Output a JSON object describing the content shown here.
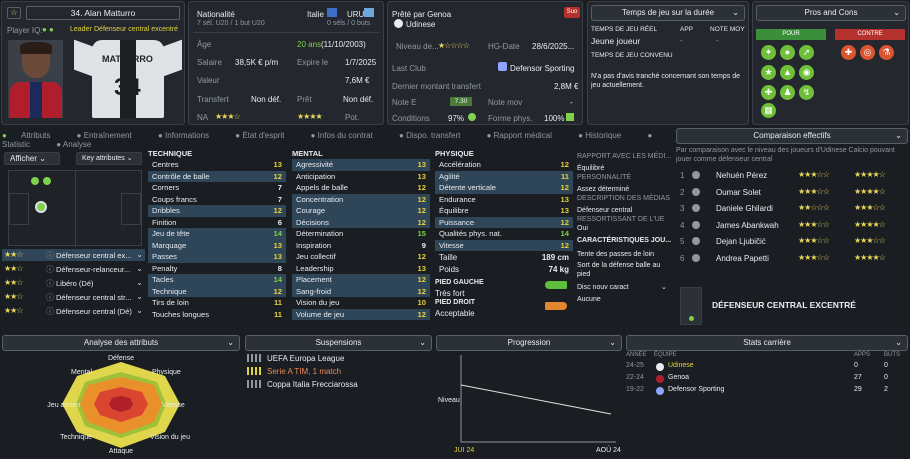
{
  "player": {
    "number_name": "34. Alan Matturro",
    "role_label": "Player IQ:",
    "role_text": "Leader",
    "position": "Défenseur central excentré"
  },
  "info": {
    "nat_label": "Nationalité",
    "nat_val": "Italie",
    "nat2": "URU",
    "caps": "7 sél. U20 / 1 but U20",
    "caps2": "0 séls / 0 buts",
    "age_label": "Âge",
    "age_val": "20 ans",
    "dob": "(11/10/2003)",
    "sal_label": "Salaire",
    "sal_val": "38,5K € p/m",
    "exp_label": "Expire le",
    "exp_val": "1/7/2025",
    "val_label": "Valeur",
    "val_val": "7,6M €",
    "tr_label": "Transfert",
    "tr_val": "Non déf.",
    "pret_label": "Prêt",
    "pret_val": "Non déf.",
    "na_label": "NA",
    "pot_label": "Pot."
  },
  "loan": {
    "title": "Prêté par Genoa",
    "club": "Udinese",
    "badge": "Suo",
    "niveau": "Niveau de...",
    "hg_label": "HG-Date",
    "hg_val": "28/6/2025...",
    "last_label": "Last Club",
    "last_val": "Defensor Sporting",
    "dmt_label": "Dernier montant transfert",
    "dmt_val": "2,8M €",
    "note_label": "Note E",
    "note_val": "7.30",
    "nm_label": "Note mov",
    "nm_val": "-",
    "cond_label": "Conditions",
    "cond_val": "97%",
    "forme_label": "Forme phys.",
    "forme_val": "100%"
  },
  "time": {
    "title": "Temps de jeu sur la durée",
    "col1": "TEMPS DE JEU RÉEL",
    "col2": "APP",
    "col3": "NOTE MOY",
    "val1": "Jeune joueur",
    "sub": "TEMPS DE JEU CONVENU",
    "note": "N'a pas d'avis tranché concernant son temps de jeu actuellement."
  },
  "pros": {
    "title": "Pros and Cons",
    "pour": "POUR",
    "contre": "CONTRE"
  },
  "tabs": [
    "Attributs",
    "Entraînement",
    "Informations",
    "État d'esprit",
    "Infos du contrat",
    "Dispo. transfert",
    "Rapport médical",
    "Historique",
    "Statistic",
    "Analyse"
  ],
  "left": {
    "afficher": "Afficher",
    "key": "Key attributes",
    "roles": [
      "Défenseur central ex...",
      "Défenseur-relanceur...",
      "Libéro (Dé)",
      "Défenseur central str...",
      "Défenseur central (Dé)"
    ]
  },
  "technique": {
    "title": "TECHNIQUE",
    "rows": [
      [
        "Centres",
        "13"
      ],
      [
        "Contrôle de balle",
        "12"
      ],
      [
        "Corners",
        "7"
      ],
      [
        "Coups francs",
        "7"
      ],
      [
        "Dribbles",
        "12"
      ],
      [
        "Finition",
        "6"
      ],
      [
        "Jeu de tête",
        "14"
      ],
      [
        "Marquage",
        "13"
      ],
      [
        "Passes",
        "13"
      ],
      [
        "Penalty",
        "8"
      ],
      [
        "Tacles",
        "14"
      ],
      [
        "Technique",
        "12"
      ],
      [
        "Tirs de loin",
        "11"
      ],
      [
        "Touches longues",
        "11"
      ]
    ]
  },
  "mental": {
    "title": "MENTAL",
    "rows": [
      [
        "Agressivité",
        "13"
      ],
      [
        "Anticipation",
        "13"
      ],
      [
        "Appels de balle",
        "12"
      ],
      [
        "Concentration",
        "12"
      ],
      [
        "Courage",
        "12"
      ],
      [
        "Décisions",
        "12"
      ],
      [
        "Détermination",
        "15"
      ],
      [
        "Inspiration",
        "9"
      ],
      [
        "Jeu collectif",
        "12"
      ],
      [
        "Leadership",
        "13"
      ],
      [
        "Placement",
        "12"
      ],
      [
        "Sang-froid",
        "12"
      ],
      [
        "Vision du jeu",
        "10"
      ],
      [
        "Volume de jeu",
        "12"
      ]
    ]
  },
  "physique": {
    "title": "PHYSIQUE",
    "rows": [
      [
        "Accélération",
        "12"
      ],
      [
        "Agilité",
        "11"
      ],
      [
        "Détente verticale",
        "12"
      ],
      [
        "Endurance",
        "13"
      ],
      [
        "Équilibre",
        "13"
      ],
      [
        "Puissance",
        "12"
      ],
      [
        "Qualités phys. nat.",
        "14"
      ],
      [
        "Vitesse",
        "12"
      ]
    ],
    "taille_l": "Taille",
    "taille_v": "189 cm",
    "poids_l": "Poids",
    "poids_v": "74 kg",
    "pg": "PIED GAUCHE",
    "pg_v": "Très fort",
    "pd": "PIED DROIT",
    "pd_v": "Acceptable"
  },
  "report": {
    "t1": "RAPPORT AVEC LES MÉDI...",
    "t2": "Équilibré",
    "t3": "PERSONNALITÉ",
    "t4": "Assez déterminé",
    "t5": "DESCRIPTION DES MÉDIAS",
    "t6": "Défenseur central",
    "t7": "RESSORTISSANT DE L'UE",
    "t8": "Oui",
    "t9": "CARACTÉRISTIQUES JOU...",
    "t10": "Tente des passes de loin",
    "t11": "Sort de la défense balle au pied",
    "t12": "Disc nouv caract",
    "t13": "Aucune"
  },
  "comp": {
    "title": "Comparaison effectifs",
    "desc": "Par comparaison avec le niveau des joueurs d'Udinese Calcio pouvant jouer comme défenseur central",
    "players": [
      [
        "1",
        "Nehuén Pérez"
      ],
      [
        "2",
        "Oumar Solet"
      ],
      [
        "3",
        "Daniele Ghilardi"
      ],
      [
        "4",
        "James Abankwah"
      ],
      [
        "5",
        "Dejan Ljubičić"
      ],
      [
        "6",
        "Andrea Papetti"
      ]
    ],
    "role": "DÉFENSEUR CENTRAL EXCENTRÉ"
  },
  "bottom": {
    "analyse": "Analyse des attributs",
    "susp": "Suspensions",
    "prog": "Progression",
    "stats": "Stats carrière",
    "radar": [
      "Défense",
      "Physique",
      "Vitesse",
      "Vision du jeu",
      "Attaque",
      "Technique",
      "Jeu aérien",
      "Mental"
    ],
    "susp_items": [
      "UEFA Europa League",
      "Serie A TIM, 1 match",
      "Coppa Italia Frecciarossa"
    ],
    "niveau": "Niveau",
    "x1": "JUI 24",
    "x2": "AOÛ 24",
    "hdr": [
      "ANNÉE",
      "ÉQUIPE",
      "APPS",
      "BUTS"
    ],
    "rows": [
      [
        "24-25",
        "Udinese",
        "0",
        "0"
      ],
      [
        "22-24",
        "Genoa",
        "27",
        "0"
      ],
      [
        "19-22",
        "Defensor Sporting",
        "29",
        "2"
      ]
    ]
  }
}
